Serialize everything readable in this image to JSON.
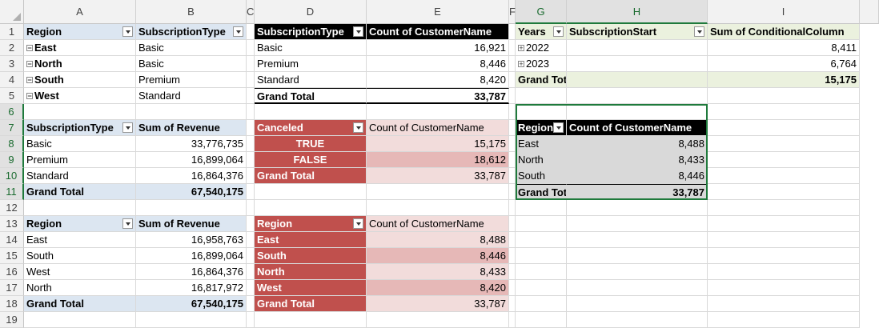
{
  "columns": [
    "A",
    "B",
    "C",
    "D",
    "E",
    "F",
    "G",
    "H",
    "I"
  ],
  "rows": [
    "1",
    "2",
    "3",
    "4",
    "5",
    "6",
    "7",
    "8",
    "9",
    "10",
    "11",
    "12",
    "13",
    "14",
    "15",
    "16",
    "17",
    "18",
    "19"
  ],
  "pivot_region_type": {
    "headers": [
      "Region",
      "SubscriptionType"
    ],
    "rows": [
      [
        "East",
        "Basic"
      ],
      [
        "North",
        "Basic"
      ],
      [
        "South",
        "Premium"
      ],
      [
        "West",
        "Standard"
      ]
    ],
    "expand_glyph": "−"
  },
  "pivot_type_revenue": {
    "headers": [
      "SubscriptionType",
      "Sum of Revenue"
    ],
    "rows": [
      [
        "Basic",
        "33,776,735"
      ],
      [
        "Premium",
        "16,899,064"
      ],
      [
        "Standard",
        "16,864,376"
      ]
    ],
    "total": [
      "Grand Total",
      "67,540,175"
    ]
  },
  "pivot_region_revenue": {
    "headers": [
      "Region",
      "Sum of Revenue"
    ],
    "rows": [
      [
        "East",
        "16,958,763"
      ],
      [
        "South",
        "16,899,064"
      ],
      [
        "West",
        "16,864,376"
      ],
      [
        "North",
        "16,817,972"
      ]
    ],
    "total": [
      "Grand Total",
      "67,540,175"
    ]
  },
  "pivot_type_count": {
    "headers": [
      "SubscriptionType",
      "Count of CustomerName"
    ],
    "rows": [
      [
        "Basic",
        "16,921"
      ],
      [
        "Premium",
        "8,446"
      ],
      [
        "Standard",
        "8,420"
      ]
    ],
    "total": [
      "Grand Total",
      "33,787"
    ]
  },
  "pivot_canceled": {
    "headers": [
      "Canceled",
      "Count of CustomerName"
    ],
    "rows": [
      [
        "TRUE",
        "15,175"
      ],
      [
        "FALSE",
        "18,612"
      ]
    ],
    "total": [
      "Grand Total",
      "33,787"
    ]
  },
  "pivot_region_count_red": {
    "headers": [
      "Region",
      "Count of CustomerName"
    ],
    "rows": [
      [
        "East",
        "8,488"
      ],
      [
        "South",
        "8,446"
      ],
      [
        "North",
        "8,433"
      ],
      [
        "West",
        "8,420"
      ]
    ],
    "total": [
      "Grand Total",
      "33,787"
    ]
  },
  "pivot_years": {
    "headers": [
      "Years",
      "SubscriptionStart",
      "Sum of ConditionalColumn"
    ],
    "rows": [
      [
        "2022",
        "8,411"
      ],
      [
        "2023",
        "6,764"
      ]
    ],
    "total": [
      "Grand Total",
      "15,175"
    ],
    "expand_glyph": "+"
  },
  "pivot_region_count_black": {
    "headers": [
      "Region",
      "Count of CustomerName"
    ],
    "rows": [
      [
        "East",
        "8,488"
      ],
      [
        "North",
        "8,433"
      ],
      [
        "South",
        "8,446"
      ],
      [
        "West",
        "8,420"
      ]
    ],
    "total": [
      "Grand Tot",
      "33,787"
    ]
  },
  "colors": {
    "accent_green": "#1f7a3c",
    "pivot_blue": "#dce6f1",
    "pivot_red": "#c0504d",
    "pivot_red_light": "#f2dcdb",
    "pivot_red_mid": "#e6b8b7",
    "pivot_olive": "#ebf1de"
  }
}
